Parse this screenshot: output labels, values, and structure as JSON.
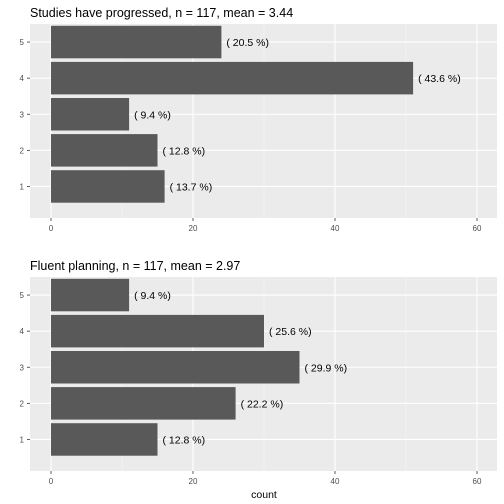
{
  "chart_data": [
    {
      "type": "bar",
      "orientation": "horizontal",
      "title": "Studies have progressed, n = 117, mean =  3.44",
      "categories": [
        "1",
        "2",
        "3",
        "4",
        "5"
      ],
      "values": [
        16,
        15,
        11,
        51,
        24
      ],
      "data_labels": [
        "( 13.7 %)",
        "( 12.8 %)",
        "( 9.4 %)",
        "( 43.6 %)",
        "( 20.5 %)"
      ],
      "xlim": [
        0,
        60
      ],
      "xticks": [
        "0",
        "20",
        "40",
        "60"
      ],
      "xlabel": "",
      "ylabel": "",
      "grid": true,
      "bar_color": "#595959",
      "panel_color": "#ebebeb"
    },
    {
      "type": "bar",
      "orientation": "horizontal",
      "title": "Fluent planning, n = 117, mean =  2.97",
      "categories": [
        "1",
        "2",
        "3",
        "4",
        "5"
      ],
      "values": [
        15,
        26,
        35,
        30,
        11
      ],
      "data_labels": [
        "( 12.8 %)",
        "( 22.2 %)",
        "( 29.9 %)",
        "( 25.6 %)",
        "( 9.4 %)"
      ],
      "xlim": [
        0,
        60
      ],
      "xticks": [
        "0",
        "20",
        "40",
        "60"
      ],
      "xlabel": "count",
      "ylabel": "",
      "grid": true,
      "bar_color": "#595959",
      "panel_color": "#ebebeb"
    }
  ]
}
